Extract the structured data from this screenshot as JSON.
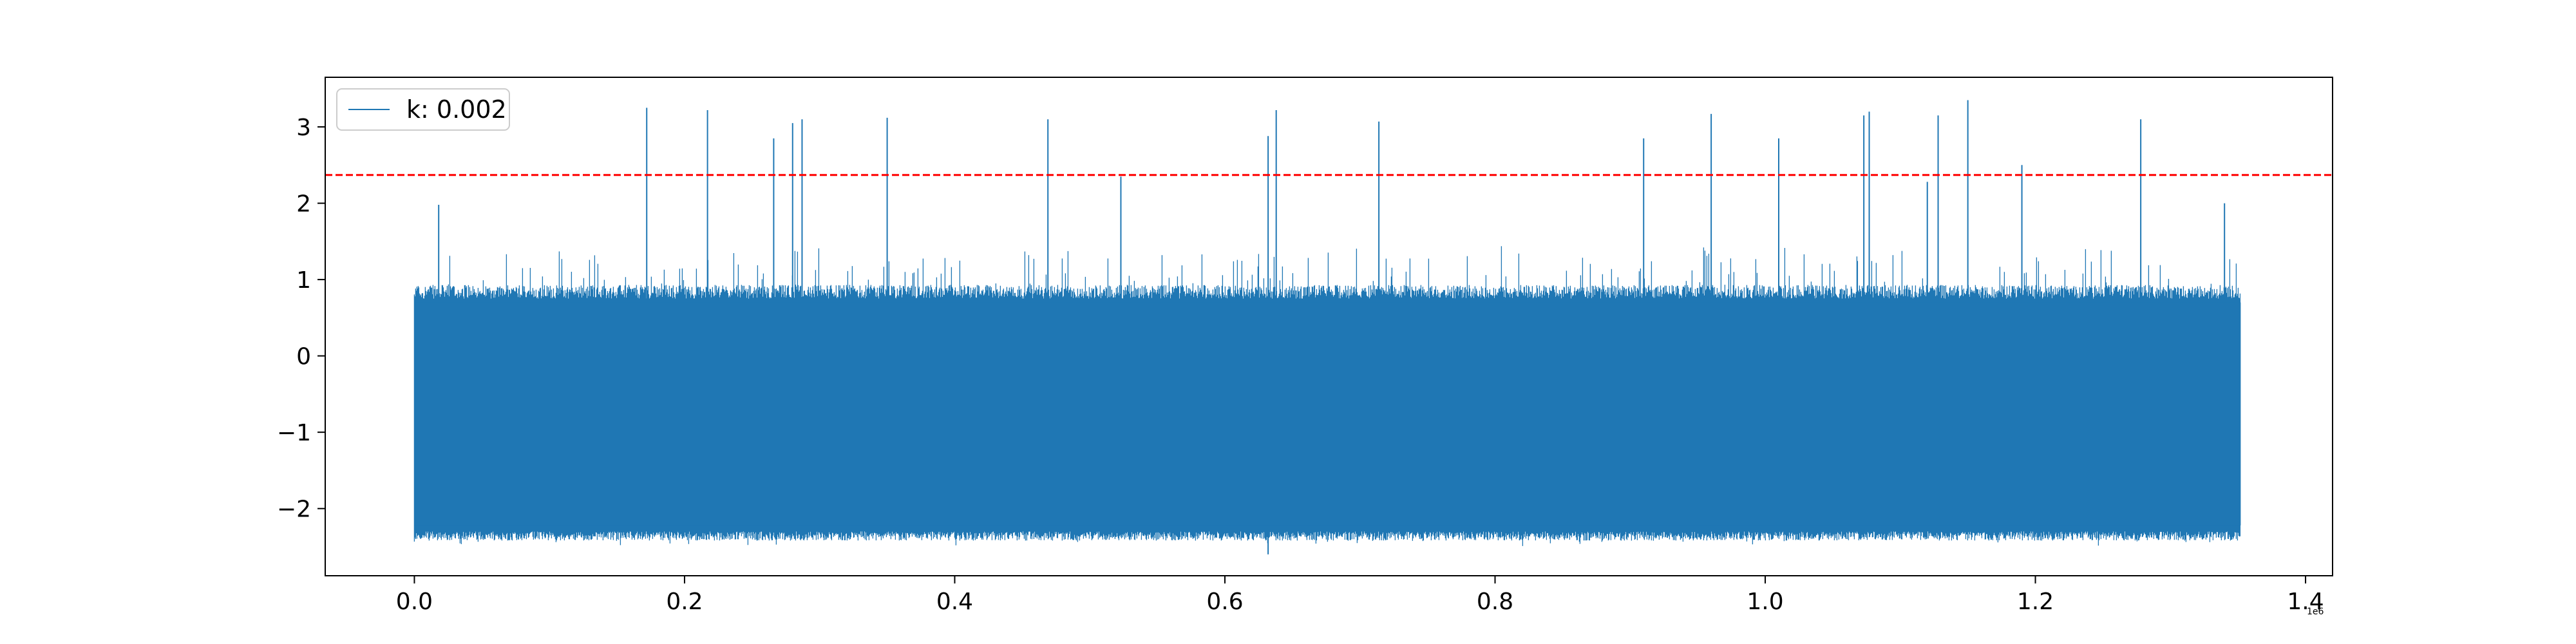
{
  "chart_data": {
    "type": "line",
    "title": "",
    "xlabel": "",
    "ylabel": "",
    "x_offset_label": "1e6",
    "xlim": [
      -0.066,
      1.42
    ],
    "ylim": [
      -2.88,
      3.65
    ],
    "x_ticks": [
      0.0,
      0.2,
      0.4,
      0.6,
      0.8,
      1.0,
      1.2,
      1.4
    ],
    "x_tick_labels": [
      "0.0",
      "0.2",
      "0.4",
      "0.6",
      "0.8",
      "1.0",
      "1.2",
      "1.4"
    ],
    "y_ticks": [
      -2,
      -1,
      0,
      1,
      2,
      3
    ],
    "y_tick_labels": [
      "−2",
      "−1",
      "0",
      "1",
      "2",
      "3"
    ],
    "grid": false,
    "legend": {
      "placement": "top-left",
      "entries": [
        {
          "label": "k: 0.002",
          "color": "#1f77b4"
        }
      ]
    },
    "series": [
      {
        "name": "k: 0.002",
        "color": "#1f77b4",
        "x_range": [
          0.0,
          1.352
        ],
        "band_low_typical": -2.3,
        "band_high_typical": 0.75,
        "min_value": -2.6,
        "max_value": 3.35,
        "spikes": [
          {
            "x": 0.018,
            "y": 1.98
          },
          {
            "x": 0.172,
            "y": 3.25
          },
          {
            "x": 0.217,
            "y": 3.22
          },
          {
            "x": 0.266,
            "y": 2.85
          },
          {
            "x": 0.28,
            "y": 3.05
          },
          {
            "x": 0.287,
            "y": 3.1
          },
          {
            "x": 0.35,
            "y": 3.12
          },
          {
            "x": 0.469,
            "y": 3.1
          },
          {
            "x": 0.523,
            "y": 2.35
          },
          {
            "x": 0.632,
            "y": 2.88
          },
          {
            "x": 0.638,
            "y": 3.22
          },
          {
            "x": 0.714,
            "y": 3.07
          },
          {
            "x": 0.91,
            "y": 2.85
          },
          {
            "x": 0.96,
            "y": 3.17
          },
          {
            "x": 1.01,
            "y": 2.85
          },
          {
            "x": 1.073,
            "y": 3.15
          },
          {
            "x": 1.077,
            "y": 3.2
          },
          {
            "x": 1.12,
            "y": 2.28
          },
          {
            "x": 1.128,
            "y": 3.15
          },
          {
            "x": 1.15,
            "y": 3.35
          },
          {
            "x": 1.19,
            "y": 2.5
          },
          {
            "x": 1.278,
            "y": 3.1
          },
          {
            "x": 1.34,
            "y": 2.0
          }
        ]
      }
    ],
    "threshold": {
      "y": 2.37,
      "color": "#ff0000",
      "style": "dashed"
    }
  }
}
